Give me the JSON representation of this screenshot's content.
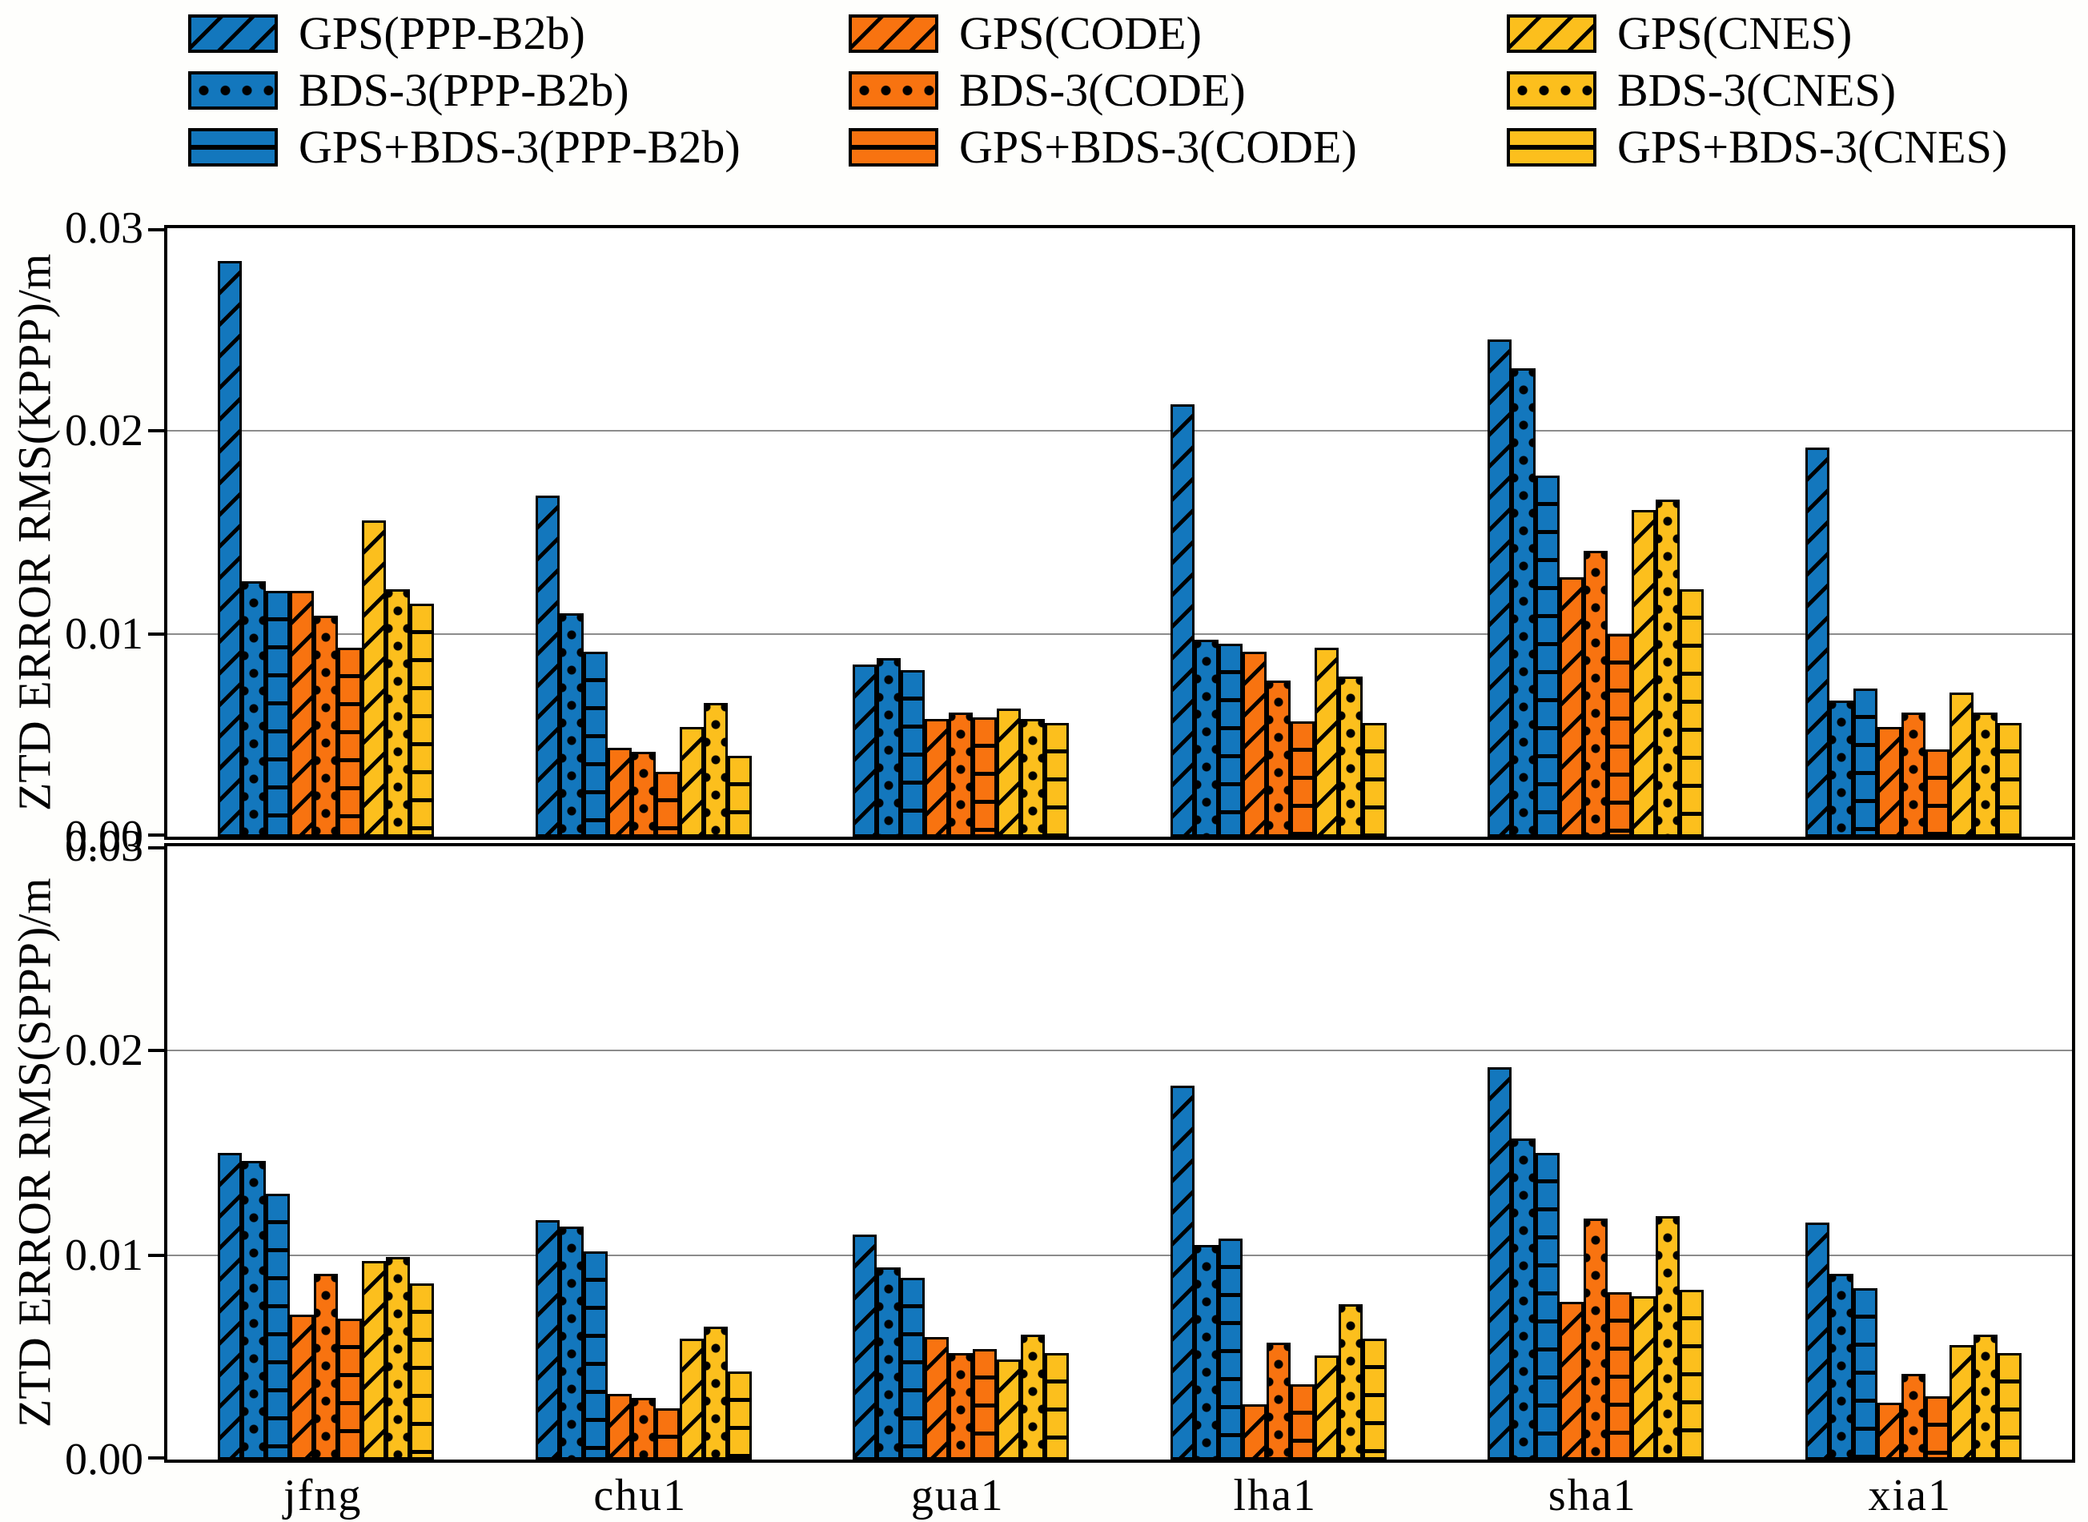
{
  "colors": {
    "blue": "#1377bd",
    "orange": "#f87310",
    "yellow": "#fcbf1d",
    "gridline": "#8c8c8c"
  },
  "legend": {
    "columns": [
      {
        "x": 235,
        "items": [
          {
            "label": "GPS(PPP-B2b)",
            "color": "#1377bd",
            "hatch": "diagonal"
          },
          {
            "label": "BDS-3(PPP-B2b)",
            "color": "#1377bd",
            "hatch": "dots"
          },
          {
            "label": "GPS+BDS-3(PPP-B2b)",
            "color": "#1377bd",
            "hatch": "horizontal"
          }
        ]
      },
      {
        "x": 1060,
        "items": [
          {
            "label": "GPS(CODE)",
            "color": "#f87310",
            "hatch": "diagonal"
          },
          {
            "label": "BDS-3(CODE)",
            "color": "#f87310",
            "hatch": "dots"
          },
          {
            "label": "GPS+BDS-3(CODE)",
            "color": "#f87310",
            "hatch": "horizontal"
          }
        ]
      },
      {
        "x": 1882,
        "items": [
          {
            "label": "GPS(CNES)",
            "color": "#fcbf1d",
            "hatch": "diagonal"
          },
          {
            "label": "BDS-3(CNES)",
            "color": "#fcbf1d",
            "hatch": "dots"
          },
          {
            "label": "GPS+BDS-3(CNES)",
            "color": "#fcbf1d",
            "hatch": "horizontal"
          }
        ]
      }
    ]
  },
  "chart_data": [
    {
      "type": "bar",
      "panel": "kppp",
      "ylabel": "ZTD ERROR RMS(KPPP)/m",
      "ylim": [
        0,
        0.03
      ],
      "yticks": [
        0,
        0.01,
        0.02,
        0.03
      ],
      "grid": "horizontal",
      "show_xlabels": false,
      "categories": [
        "jfng",
        "chu1",
        "gua1",
        "lha1",
        "sha1",
        "xia1"
      ],
      "series": [
        {
          "name": "GPS(PPP-B2b)",
          "color": "#1377bd",
          "hatch": "diagonal",
          "values": [
            0.0284,
            0.0168,
            0.0085,
            0.0213,
            0.0245,
            0.0192
          ]
        },
        {
          "name": "BDS-3(PPP-B2b)",
          "color": "#1377bd",
          "hatch": "dots",
          "values": [
            0.0126,
            0.011,
            0.0088,
            0.0097,
            0.0231,
            0.0067
          ]
        },
        {
          "name": "GPS+BDS-3(PPP-B2b)",
          "color": "#1377bd",
          "hatch": "horizontal",
          "values": [
            0.0121,
            0.0091,
            0.0082,
            0.0095,
            0.0178,
            0.0073
          ]
        },
        {
          "name": "GPS(CODE)",
          "color": "#f87310",
          "hatch": "diagonal",
          "values": [
            0.0121,
            0.0044,
            0.0058,
            0.0091,
            0.0128,
            0.0054
          ]
        },
        {
          "name": "BDS-3(CODE)",
          "color": "#f87310",
          "hatch": "dots",
          "values": [
            0.0109,
            0.0042,
            0.0061,
            0.0077,
            0.0141,
            0.0061
          ]
        },
        {
          "name": "GPS+BDS-3(CODE)",
          "color": "#f87310",
          "hatch": "horizontal",
          "values": [
            0.0093,
            0.0032,
            0.0059,
            0.0057,
            0.01,
            0.0043
          ]
        },
        {
          "name": "GPS(CNES)",
          "color": "#fcbf1d",
          "hatch": "diagonal",
          "values": [
            0.0156,
            0.0054,
            0.0063,
            0.0093,
            0.0161,
            0.0071
          ]
        },
        {
          "name": "BDS-3(CNES)",
          "color": "#fcbf1d",
          "hatch": "dots",
          "values": [
            0.0122,
            0.0066,
            0.0058,
            0.0079,
            0.0166,
            0.0061
          ]
        },
        {
          "name": "GPS+BDS-3(CNES)",
          "color": "#fcbf1d",
          "hatch": "horizontal",
          "values": [
            0.0115,
            0.004,
            0.0056,
            0.0056,
            0.0122,
            0.0056
          ]
        }
      ]
    },
    {
      "type": "bar",
      "panel": "sppp",
      "ylabel": "ZTD ERROR RMS(SPPP)/m",
      "ylim": [
        0,
        0.03
      ],
      "yticks": [
        0,
        0.01,
        0.02,
        0.03
      ],
      "grid": "horizontal",
      "show_xlabels": true,
      "categories": [
        "jfng",
        "chu1",
        "gua1",
        "lha1",
        "sha1",
        "xia1"
      ],
      "series": [
        {
          "name": "GPS(PPP-B2b)",
          "color": "#1377bd",
          "hatch": "diagonal",
          "values": [
            0.015,
            0.0117,
            0.011,
            0.0183,
            0.0192,
            0.0116
          ]
        },
        {
          "name": "BDS-3(PPP-B2b)",
          "color": "#1377bd",
          "hatch": "dots",
          "values": [
            0.0146,
            0.0114,
            0.0094,
            0.0105,
            0.0157,
            0.0091
          ]
        },
        {
          "name": "GPS+BDS-3(PPP-B2b)",
          "color": "#1377bd",
          "hatch": "horizontal",
          "values": [
            0.013,
            0.0102,
            0.0089,
            0.0108,
            0.015,
            0.0084
          ]
        },
        {
          "name": "GPS(CODE)",
          "color": "#f87310",
          "hatch": "diagonal",
          "values": [
            0.0071,
            0.0032,
            0.006,
            0.0027,
            0.0077,
            0.0028
          ]
        },
        {
          "name": "BDS-3(CODE)",
          "color": "#f87310",
          "hatch": "dots",
          "values": [
            0.0091,
            0.003,
            0.0052,
            0.0057,
            0.0118,
            0.0042
          ]
        },
        {
          "name": "GPS+BDS-3(CODE)",
          "color": "#f87310",
          "hatch": "horizontal",
          "values": [
            0.0069,
            0.0025,
            0.0054,
            0.0037,
            0.0082,
            0.0031
          ]
        },
        {
          "name": "GPS(CNES)",
          "color": "#fcbf1d",
          "hatch": "diagonal",
          "values": [
            0.0097,
            0.0059,
            0.0049,
            0.0051,
            0.008,
            0.0056
          ]
        },
        {
          "name": "BDS-3(CNES)",
          "color": "#fcbf1d",
          "hatch": "dots",
          "values": [
            0.0099,
            0.0065,
            0.0061,
            0.0076,
            0.0119,
            0.0061
          ]
        },
        {
          "name": "GPS+BDS-3(CNES)",
          "color": "#fcbf1d",
          "hatch": "horizontal",
          "values": [
            0.0086,
            0.0043,
            0.0052,
            0.0059,
            0.0083,
            0.0052
          ]
        }
      ]
    }
  ]
}
